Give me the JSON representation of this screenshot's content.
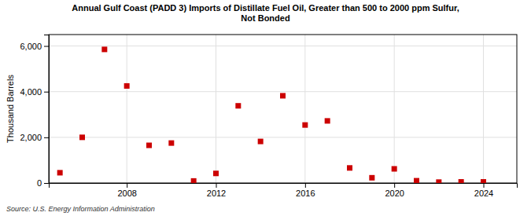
{
  "chart_data": {
    "type": "scatter",
    "title": "Annual Gulf Coast (PADD 3) Imports of Distillate Fuel Oil, Greater than 500 to 2000 ppm Sulfur,\nNot Bonded",
    "ylabel": "Thousand Barrels",
    "source": "Source: U.S. Energy Information Administration",
    "color": "#cc0000",
    "marker": "square",
    "grid": true,
    "xlim": [
      2004.5,
      2025.5
    ],
    "ylim": [
      0,
      6500
    ],
    "xticks": [
      2008,
      2012,
      2016,
      2020,
      2024
    ],
    "yticks": [
      0,
      {
        "value": 2000,
        "label": "2,000"
      },
      {
        "value": 4000,
        "label": "4,000"
      },
      {
        "value": 6000,
        "label": "6,000"
      }
    ],
    "x": [
      2005,
      2006,
      2007,
      2008,
      2009,
      2010,
      2011,
      2012,
      2013,
      2014,
      2015,
      2016,
      2017,
      2018,
      2019,
      2020,
      2021,
      2022,
      2023,
      2024
    ],
    "values": [
      450,
      2000,
      5850,
      4250,
      1650,
      1750,
      90,
      420,
      3380,
      1820,
      3820,
      2540,
      2720,
      660,
      230,
      620,
      100,
      40,
      50,
      50
    ]
  }
}
